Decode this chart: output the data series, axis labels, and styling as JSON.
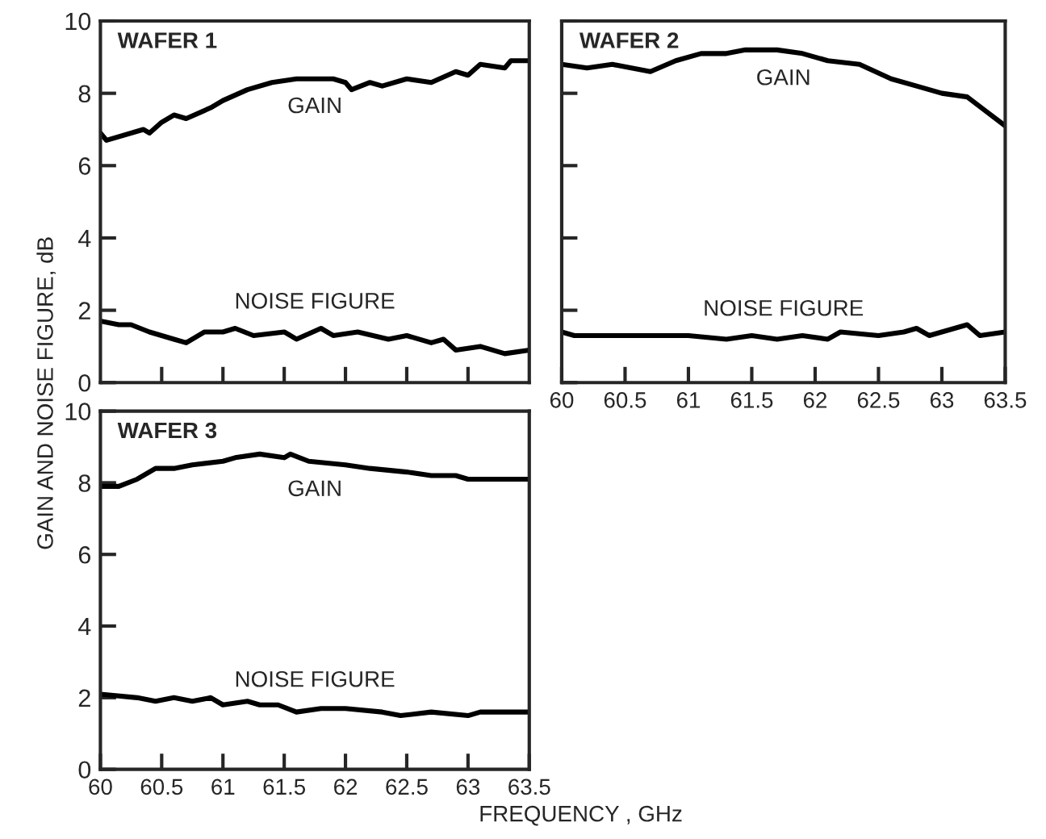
{
  "chart_data": [
    {
      "type": "line",
      "title": "WAFER 1",
      "xlim": [
        60,
        63.5
      ],
      "ylim": [
        0,
        10
      ],
      "xticks": [
        60.5,
        61,
        61.5,
        62,
        62.5,
        63
      ],
      "yticks": [
        0,
        2,
        4,
        6,
        8,
        10
      ],
      "tick_labels": "y",
      "grid": false,
      "line_style": "solid",
      "marker": "none",
      "series": [
        {
          "name": "GAIN",
          "color": "#000000",
          "x": [
            60.0,
            60.05,
            60.35,
            60.4,
            60.5,
            60.6,
            60.7,
            60.9,
            61.0,
            61.2,
            61.4,
            61.6,
            61.9,
            62.0,
            62.05,
            62.2,
            62.3,
            62.5,
            62.7,
            62.9,
            63.0,
            63.1,
            63.3,
            63.35,
            63.5
          ],
          "values": [
            6.9,
            6.7,
            7.0,
            6.9,
            7.2,
            7.4,
            7.3,
            7.6,
            7.8,
            8.1,
            8.3,
            8.4,
            8.4,
            8.3,
            8.1,
            8.3,
            8.2,
            8.4,
            8.3,
            8.6,
            8.5,
            8.8,
            8.7,
            8.9,
            8.9
          ]
        },
        {
          "name": "NOISE FIGURE",
          "color": "#000000",
          "x": [
            60.0,
            60.15,
            60.25,
            60.4,
            60.6,
            60.7,
            60.85,
            61.0,
            61.1,
            61.25,
            61.5,
            61.6,
            61.8,
            61.9,
            62.1,
            62.35,
            62.5,
            62.7,
            62.8,
            62.9,
            63.1,
            63.3,
            63.5
          ],
          "values": [
            1.7,
            1.6,
            1.6,
            1.4,
            1.2,
            1.1,
            1.4,
            1.4,
            1.5,
            1.3,
            1.4,
            1.2,
            1.5,
            1.3,
            1.4,
            1.2,
            1.3,
            1.1,
            1.2,
            0.9,
            1.0,
            0.8,
            0.9
          ]
        }
      ]
    },
    {
      "type": "line",
      "title": "WAFER 2",
      "xlim": [
        60,
        63.5
      ],
      "ylim": [
        0,
        10
      ],
      "xticks": [
        60,
        60.5,
        61,
        61.5,
        62,
        62.5,
        63,
        63.5
      ],
      "yticks": [
        0,
        2,
        4,
        6,
        8,
        10
      ],
      "tick_labels": "x",
      "grid": false,
      "line_style": "solid",
      "marker": "none",
      "series": [
        {
          "name": "GAIN",
          "color": "#000000",
          "x": [
            60.0,
            60.2,
            60.4,
            60.55,
            60.7,
            60.9,
            61.1,
            61.3,
            61.45,
            61.7,
            61.9,
            62.1,
            62.35,
            62.6,
            62.8,
            63.0,
            63.2,
            63.35,
            63.5
          ],
          "values": [
            8.8,
            8.7,
            8.8,
            8.7,
            8.6,
            8.9,
            9.1,
            9.1,
            9.2,
            9.2,
            9.1,
            8.9,
            8.8,
            8.4,
            8.2,
            8.0,
            7.9,
            7.5,
            7.1
          ]
        },
        {
          "name": "NOISE FIGURE",
          "color": "#000000",
          "x": [
            60.0,
            60.1,
            60.4,
            60.7,
            61.0,
            61.3,
            61.5,
            61.7,
            61.9,
            62.1,
            62.2,
            62.5,
            62.7,
            62.8,
            62.9,
            63.2,
            63.3,
            63.5
          ],
          "values": [
            1.4,
            1.3,
            1.3,
            1.3,
            1.3,
            1.2,
            1.3,
            1.2,
            1.3,
            1.2,
            1.4,
            1.3,
            1.4,
            1.5,
            1.3,
            1.6,
            1.3,
            1.4
          ]
        }
      ]
    },
    {
      "type": "line",
      "title": "WAFER 3",
      "xlabel": "FREQUENCY , GHz",
      "ylabel": "GAIN AND NOISE FIGURE, dB",
      "xlim": [
        60,
        63.5
      ],
      "ylim": [
        0,
        10
      ],
      "xticks": [
        60,
        60.5,
        61,
        61.5,
        62,
        62.5,
        63,
        63.5
      ],
      "yticks": [
        0,
        2,
        4,
        6,
        8,
        10
      ],
      "grid": false,
      "line_style": "solid",
      "marker": "none",
      "series": [
        {
          "name": "GAIN",
          "color": "#000000",
          "x": [
            60.0,
            60.15,
            60.3,
            60.45,
            60.6,
            60.75,
            61.0,
            61.1,
            61.3,
            61.5,
            61.55,
            61.7,
            62.0,
            62.2,
            62.5,
            62.7,
            62.9,
            63.0,
            63.2,
            63.3,
            63.5
          ],
          "values": [
            7.9,
            7.9,
            8.1,
            8.4,
            8.4,
            8.5,
            8.6,
            8.7,
            8.8,
            8.7,
            8.8,
            8.6,
            8.5,
            8.4,
            8.3,
            8.2,
            8.2,
            8.1,
            8.1,
            8.1,
            8.1
          ]
        },
        {
          "name": "NOISE FIGURE",
          "color": "#000000",
          "x": [
            60.0,
            60.3,
            60.45,
            60.6,
            60.75,
            60.9,
            61.0,
            61.2,
            61.3,
            61.45,
            61.6,
            61.8,
            62.0,
            62.3,
            62.45,
            62.7,
            63.0,
            63.1,
            63.2,
            63.5
          ],
          "values": [
            2.1,
            2.0,
            1.9,
            2.0,
            1.9,
            2.0,
            1.8,
            1.9,
            1.8,
            1.8,
            1.6,
            1.7,
            1.7,
            1.6,
            1.5,
            1.6,
            1.5,
            1.6,
            1.6,
            1.6
          ]
        }
      ]
    }
  ]
}
